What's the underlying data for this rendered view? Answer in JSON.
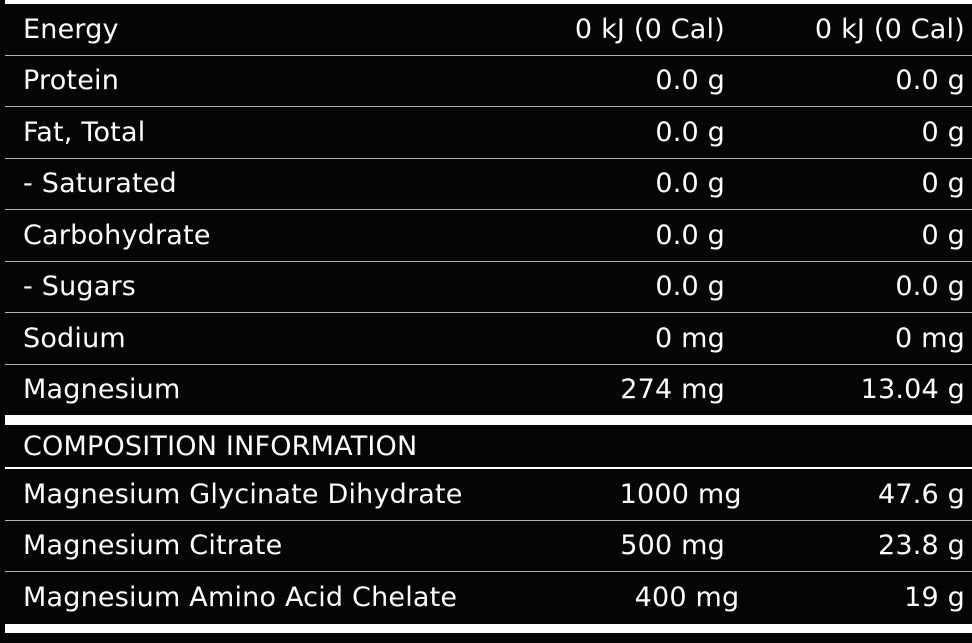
{
  "nutrition": [
    {
      "name": "Energy",
      "per_serve": "0 kJ (0 Cal)",
      "per_100g": "0 kJ (0 Cal)"
    },
    {
      "name": "Protein",
      "per_serve": "0.0 g",
      "per_100g": "0.0 g"
    },
    {
      "name": "Fat, Total",
      "per_serve": "0.0 g",
      "per_100g": "0 g"
    },
    {
      "name": "- Saturated",
      "per_serve": "0.0 g",
      "per_100g": "0 g"
    },
    {
      "name": "Carbohydrate",
      "per_serve": "0.0 g",
      "per_100g": "0 g"
    },
    {
      "name": "- Sugars",
      "per_serve": "0.0 g",
      "per_100g": "0.0 g"
    },
    {
      "name": "Sodium",
      "per_serve": "0 mg",
      "per_100g": "0 mg"
    },
    {
      "name": "Magnesium",
      "per_serve": "274 mg",
      "per_100g": "13.04 g"
    }
  ],
  "composition": {
    "heading": "COMPOSITION INFORMATION",
    "rows": [
      {
        "name": "Magnesium Glycinate Dihydrate",
        "per_serve": "1000 mg",
        "per_100g": "47.6 g"
      },
      {
        "name": "Magnesium Citrate",
        "per_serve": "500 mg",
        "per_100g": "23.8 g"
      },
      {
        "name": "Magnesium Amino Acid Chelate",
        "per_serve": "400 mg",
        "per_100g": "19 g"
      }
    ]
  }
}
